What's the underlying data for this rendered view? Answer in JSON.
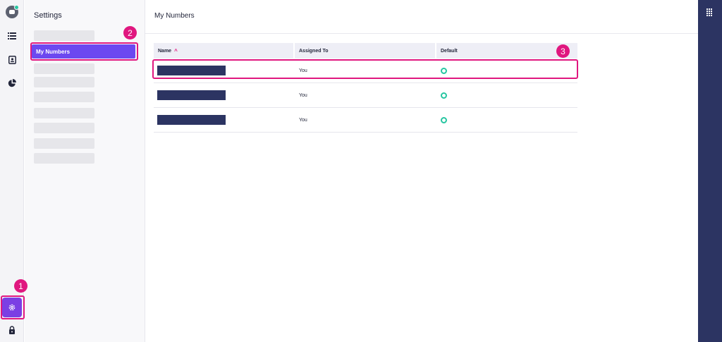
{
  "sidebar": {
    "title": "Settings",
    "selected_item": "My Numbers"
  },
  "main": {
    "title": "My Numbers"
  },
  "table": {
    "columns": [
      {
        "label": "Name",
        "sort": "ascending"
      },
      {
        "label": "Assigned To"
      },
      {
        "label": "Default"
      }
    ],
    "rows": [
      {
        "name": "",
        "assigned_to": "You",
        "default": true
      },
      {
        "name": "",
        "assigned_to": "You",
        "default": true
      },
      {
        "name": "",
        "assigned_to": "You",
        "default": true
      }
    ]
  },
  "annotations": {
    "step1": "1",
    "step2": "2",
    "step3": "3",
    "color": "#e0177f"
  },
  "colors": {
    "accent": "#6c48f0",
    "nav_dark": "#2c3462",
    "status_green": "#26c6a1"
  },
  "icons": {
    "rail": [
      "avatar",
      "list-icon",
      "contacts-icon",
      "analytics-icon",
      "settings-gear-icon",
      "lock-icon"
    ],
    "right_panel": "dialpad-icon"
  }
}
